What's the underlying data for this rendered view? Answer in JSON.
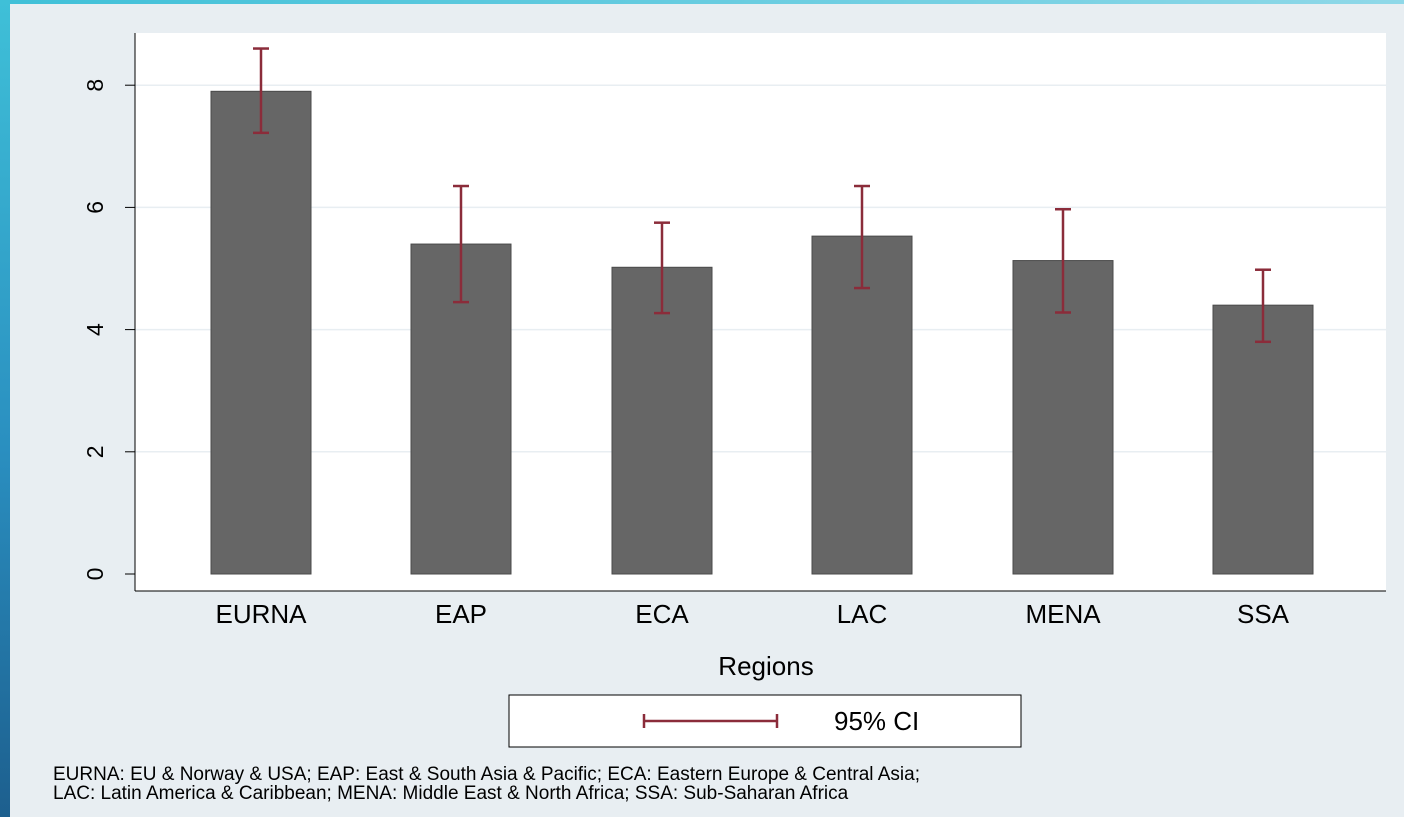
{
  "chart_data": {
    "type": "bar",
    "categories": [
      "EURNA",
      "EAP",
      "ECA",
      "LAC",
      "MENA",
      "SSA"
    ],
    "values": [
      7.9,
      5.4,
      5.02,
      5.53,
      5.13,
      4.4
    ],
    "ci_low": [
      7.22,
      4.45,
      4.27,
      4.68,
      4.28,
      3.8
    ],
    "ci_high": [
      8.6,
      6.35,
      5.75,
      6.35,
      5.97,
      4.98
    ],
    "xlabel": "Regions",
    "ylabel": "",
    "ylim": [
      0,
      8.9
    ],
    "yticks": [
      "0",
      "2",
      "4",
      "6",
      "8"
    ],
    "grid": true,
    "legend": {
      "label": "95% CI",
      "placement": "bottom-center"
    },
    "colors": {
      "bar": "#666666",
      "ci": "#8b2c3a",
      "gridline": "#e8eef2"
    }
  },
  "footnote": {
    "line1": "EURNA: EU & Norway & USA; EAP: East & South Asia & Pacific; ECA: Eastern Europe & Central Asia;",
    "line2": "LAC: Latin America & Caribbean; MENA: Middle East & North Africa; SSA: Sub-Saharan Africa"
  }
}
